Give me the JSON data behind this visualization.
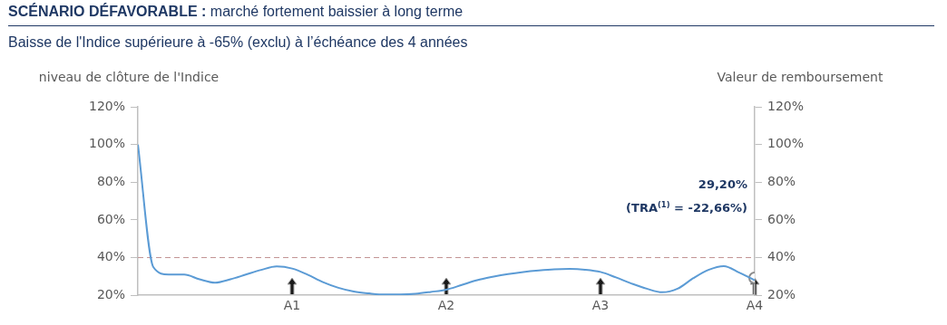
{
  "chart_data": {
    "type": "line",
    "title": "SCÉNARIO DÉFAVORABLE : marché fortement baissier à long terme",
    "subtitle": "Baisse de l'Indice supérieure à -65% (exclu) à l’échéance des 4 années",
    "ylabel": "niveau de clôture de l'Indice",
    "y2label": "Valeur de remboursement",
    "categories": [
      null,
      null,
      null,
      null,
      null,
      null,
      null,
      null,
      null,
      null,
      "A1",
      null,
      null,
      null,
      null,
      null,
      null,
      null,
      null,
      null,
      "A2",
      null,
      null,
      null,
      null,
      null,
      null,
      null,
      null,
      null,
      "A3",
      null,
      null,
      null,
      null,
      null,
      null,
      null,
      null,
      null,
      "A4"
    ],
    "series": [
      {
        "type": "line",
        "color": "#5b9bd5",
        "marker": "none",
        "values": [
          100,
          35,
          31,
          31,
          28.5,
          26.7,
          28.5,
          31,
          33.5,
          35.3,
          34.2,
          31,
          27,
          24,
          22,
          21,
          20.4,
          20.4,
          20.8,
          21.8,
          23,
          25.5,
          28,
          29.8,
          31.3,
          32.4,
          33.2,
          33.8,
          34,
          33.6,
          32.4,
          29.5,
          26.3,
          23.5,
          21.6,
          23.5,
          29,
          33.5,
          35.5,
          32,
          28
        ]
      },
      {
        "type": "scatter",
        "color": "#8c8c8c",
        "marker": "circle",
        "x": [
          "A4"
        ],
        "values": [
          29.2
        ]
      }
    ],
    "ylim": [
      20,
      120
    ],
    "yticks": [
      {
        "value": 20,
        "label": "20%"
      },
      {
        "value": 40,
        "label": "40%"
      },
      {
        "value": 60,
        "label": "60%"
      },
      {
        "value": 80,
        "label": "80%"
      },
      {
        "value": 100,
        "label": "100%"
      },
      {
        "value": 120,
        "label": "120%"
      }
    ],
    "y2lim": [
      20,
      120
    ],
    "y2ticks": [
      {
        "value": 20,
        "label": "20%"
      },
      {
        "value": 40,
        "label": "40%"
      },
      {
        "value": 60,
        "label": "60%"
      },
      {
        "value": 80,
        "label": "80%"
      },
      {
        "value": 100,
        "label": "100%"
      },
      {
        "value": 120,
        "label": "120%"
      }
    ],
    "ref_lines": [
      {
        "axis": "y",
        "value": 40,
        "color": "#c09090",
        "line_style": "dashed"
      }
    ],
    "annotations": [
      "29,20%",
      "(TRA$^{(1)}$ = -22,66%)"
    ],
    "grid": false,
    "legend": false,
    "line_style": "solid"
  }
}
